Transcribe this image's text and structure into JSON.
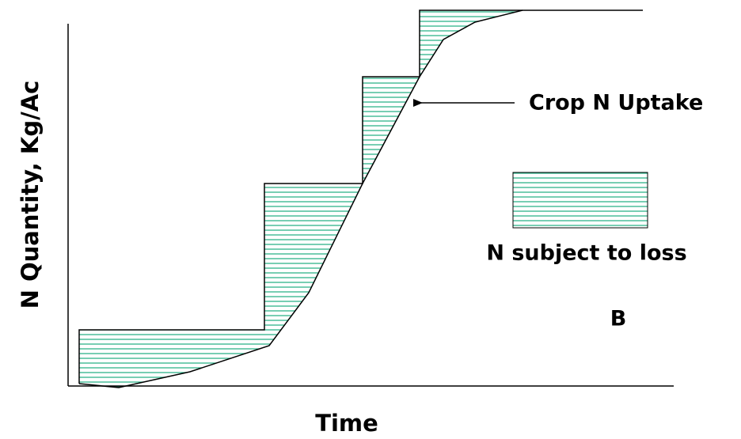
{
  "axes": {
    "x_label": "Time",
    "y_label": "N Quantity, Kg/Ac"
  },
  "annotation": "Crop N Uptake",
  "legend": {
    "label": "N subject to loss"
  },
  "panel_label": "B"
}
